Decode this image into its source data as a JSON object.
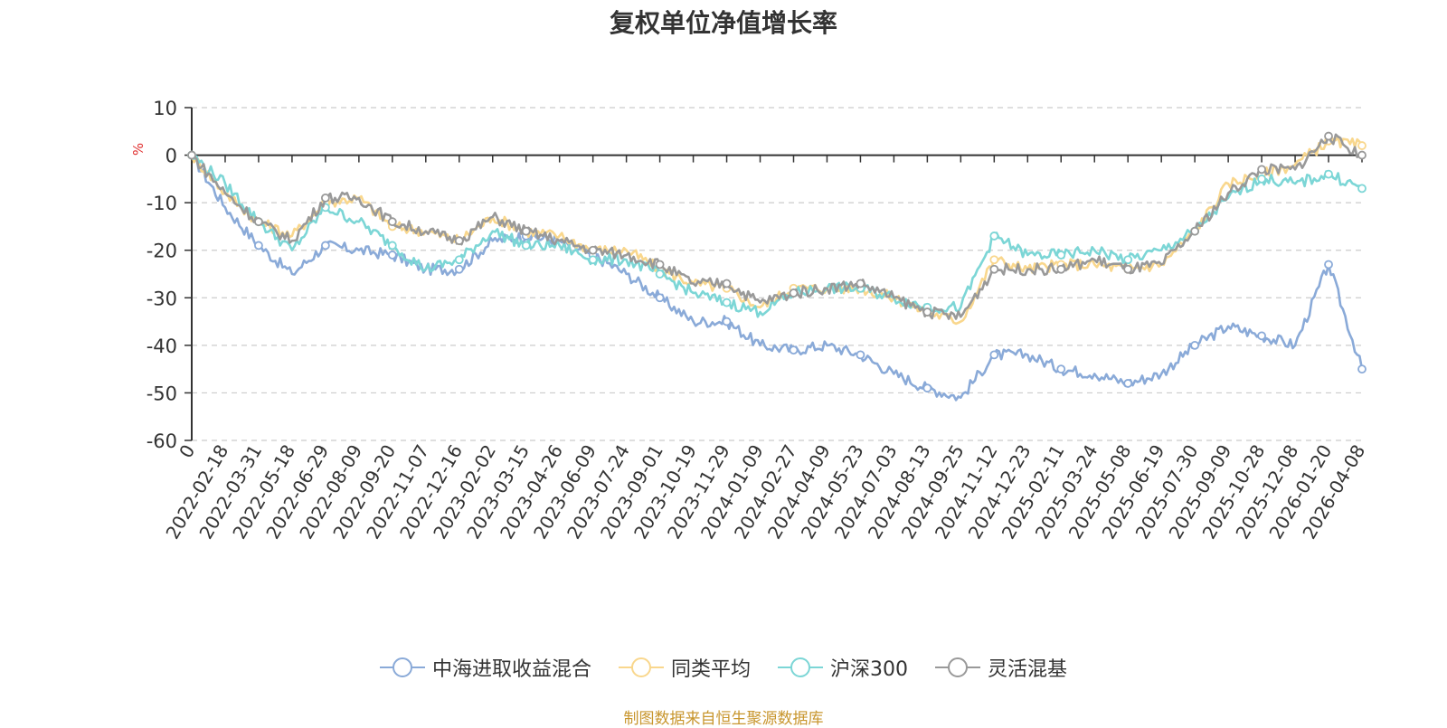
{
  "chart_data": {
    "type": "line",
    "title": "复权单位净值增长率",
    "ylabel": "%",
    "xlabel": "",
    "ylim": [
      -60,
      10
    ],
    "yticks": [
      10,
      0,
      -10,
      -20,
      -30,
      -40,
      -50,
      -60
    ],
    "grid": true,
    "legend_position": "bottom-center",
    "categories": [
      "0",
      "2022-02-18",
      "2022-03-31",
      "2022-05-18",
      "2022-06-29",
      "2022-08-09",
      "2022-09-20",
      "2022-11-07",
      "2022-12-16",
      "2023-02-02",
      "2023-03-15",
      "2023-04-26",
      "2023-06-09",
      "2023-07-24",
      "2023-09-01",
      "2023-10-19",
      "2023-11-29",
      "2024-01-09",
      "2024-02-27",
      "2024-04-09",
      "2024-05-23",
      "2024-07-03",
      "2024-08-13",
      "2024-09-25",
      "2024-11-12",
      "2024-12-23",
      "2025-02-11",
      "2025-03-24",
      "2025-05-08",
      "2025-06-19",
      "2025-07-30",
      "2025-09-09",
      "2025-10-28",
      "2025-12-08",
      "2026-01-20",
      "2026-04-08"
    ],
    "series": [
      {
        "name": "中海进取收益混合",
        "color": "#8aaad8",
        "values": [
          0,
          -11,
          -19,
          -25,
          -19,
          -20,
          -21,
          -24,
          -24,
          -18,
          -17,
          -18,
          -21,
          -25,
          -30,
          -35,
          -35,
          -40,
          -41,
          -40,
          -42,
          -46,
          -49,
          -51,
          -42,
          -42,
          -45,
          -46,
          -48,
          -46,
          -40,
          -36,
          -38,
          -40,
          -23,
          -45
        ]
      },
      {
        "name": "同类平均",
        "color": "#f9d78d",
        "values": [
          0,
          -8,
          -14,
          -17,
          -10,
          -9,
          -15,
          -16,
          -18,
          -13,
          -16,
          -17,
          -20,
          -20,
          -24,
          -27,
          -28,
          -32,
          -28,
          -28,
          -28,
          -30,
          -33,
          -35,
          -22,
          -24,
          -23,
          -23,
          -24,
          -23,
          -16,
          -6,
          -4,
          -2,
          3,
          2
        ]
      },
      {
        "name": "沪深300",
        "color": "#7cd6d6",
        "values": [
          0,
          -6,
          -14,
          -20,
          -11,
          -14,
          -19,
          -24,
          -22,
          -16,
          -19,
          -19,
          -22,
          -22,
          -25,
          -29,
          -31,
          -33,
          -29,
          -28,
          -28,
          -30,
          -32,
          -32,
          -17,
          -21,
          -21,
          -20,
          -22,
          -20,
          -16,
          -9,
          -5,
          -6,
          -4,
          -7
        ]
      },
      {
        "name": "灵活混基",
        "color": "#999999",
        "values": [
          0,
          -8,
          -14,
          -18,
          -9,
          -9,
          -14,
          -16,
          -18,
          -13,
          -16,
          -18,
          -20,
          -21,
          -23,
          -27,
          -27,
          -31,
          -29,
          -28,
          -27,
          -30,
          -33,
          -34,
          -24,
          -24,
          -24,
          -22,
          -24,
          -23,
          -16,
          -8,
          -3,
          -3,
          4,
          0
        ]
      }
    ]
  },
  "footer": "制图数据来自恒生聚源数据库"
}
